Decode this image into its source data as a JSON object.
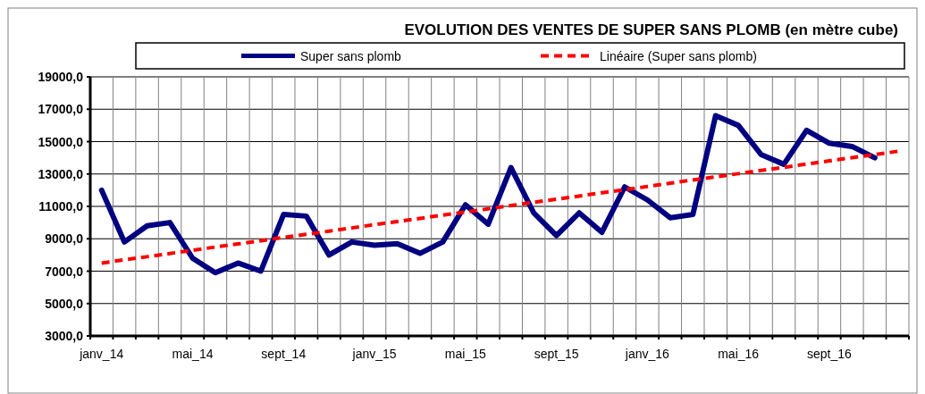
{
  "chart_data": {
    "type": "line",
    "title": "EVOLUTION DES VENTES DE SUPER SANS PLOMB  (en mètre cube)",
    "categories": [
      "janv_14",
      null,
      null,
      null,
      "mai_14",
      null,
      null,
      null,
      "sept_14",
      null,
      null,
      null,
      "janv_15",
      null,
      null,
      null,
      "mai_15",
      null,
      null,
      null,
      "sept_15",
      null,
      null,
      null,
      "janv_16",
      null,
      null,
      null,
      "mai_16",
      null,
      null,
      null,
      "sept_16",
      null,
      null,
      null
    ],
    "series": [
      {
        "name": "Super sans plomb",
        "color": "#000080",
        "line_style": "solid",
        "values": [
          12000,
          8800,
          9800,
          10000,
          7800,
          6900,
          7500,
          7000,
          10500,
          10400,
          8000,
          8800,
          8600,
          8700,
          8100,
          8800,
          11100,
          9900,
          13400,
          10600,
          9200,
          10600,
          9400,
          12200,
          11400,
          10300,
          10500,
          16600,
          16000,
          14200,
          13600,
          15700,
          14900,
          14700,
          14000,
          null
        ]
      },
      {
        "name": "Linéaire (Super sans plomb)",
        "color": "#ff0000",
        "line_style": "dashed",
        "values": [
          7500,
          7700,
          7890,
          8090,
          8290,
          8490,
          8680,
          8880,
          9080,
          9270,
          9470,
          9670,
          9870,
          10060,
          10260,
          10460,
          10650,
          10850,
          11050,
          11250,
          11440,
          11640,
          11840,
          12030,
          12230,
          12430,
          12630,
          12820,
          13020,
          13220,
          13410,
          13610,
          13810,
          14010,
          14200,
          14400
        ]
      }
    ],
    "ylim": [
      3000,
      19000
    ],
    "yticks": [
      {
        "value": 3000,
        "label": "3000,0"
      },
      {
        "value": 5000,
        "label": "5000,0"
      },
      {
        "value": 7000,
        "label": "7000,0"
      },
      {
        "value": 9000,
        "label": "9000,0"
      },
      {
        "value": 11000,
        "label": "11000,0"
      },
      {
        "value": 13000,
        "label": "13000,0"
      },
      {
        "value": 15000,
        "label": "15000,0"
      },
      {
        "value": 17000,
        "label": "17000,0"
      },
      {
        "value": 19000,
        "label": "19000,0"
      }
    ],
    "grid": true,
    "legend": "top",
    "marker": "none"
  }
}
